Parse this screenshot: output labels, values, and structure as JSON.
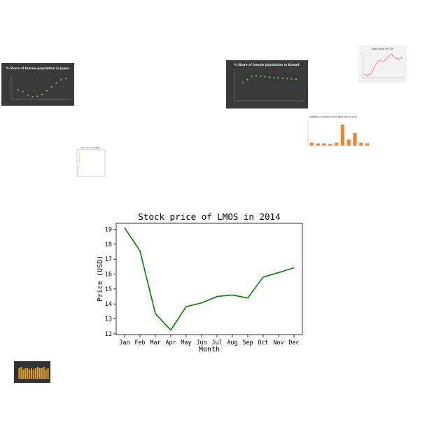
{
  "chart_data": [
    {
      "type": "line",
      "title": "Stock price of LMOS in 2014",
      "xlabel": "Month",
      "ylabel": "Price (USD)",
      "categories": [
        "Jan",
        "Feb",
        "Mar",
        "Apr",
        "May",
        "Jun",
        "Jul",
        "Aug",
        "Sep",
        "Oct",
        "Nov",
        "Dec"
      ],
      "values": [
        19.1,
        17.55,
        13.35,
        12.25,
        13.82,
        14.07,
        14.5,
        14.6,
        14.4,
        15.8,
        16.1,
        16.42
      ],
      "ylim": [
        11.95,
        19.4
      ],
      "yticks": [
        "12",
        "13",
        "14",
        "15",
        "16",
        "17",
        "18",
        "19"
      ],
      "line_color": "#008000",
      "grid": false
    },
    {
      "type": "scatter",
      "title": "% Share of female population in Japan",
      "theme": "dark",
      "marker_color": "#7cc47a",
      "values": [
        52.0,
        51.6,
        50.9,
        50.5,
        50.6,
        51.0,
        51.8,
        52.7,
        53.6,
        54.3,
        54.6
      ],
      "legend": "none"
    },
    {
      "type": "scatter",
      "title": "% Share of female population in Kuwait",
      "theme": "dark",
      "marker_color": "#7cc47a",
      "values": [
        40.2,
        41.4,
        42.6,
        42.9,
        42.7,
        42.5,
        42.3,
        42.1,
        42.0,
        41.9,
        41.8,
        41.7,
        41.5
      ],
      "legend": "none"
    },
    {
      "type": "line",
      "title": "Stock price of FOX",
      "line_color": "#e06b8b",
      "values": [
        10.0,
        9.6,
        10.4,
        12.5,
        13.6,
        13.2,
        14.3,
        15.2,
        14.1,
        13.9,
        14.4
      ]
    },
    {
      "type": "bar",
      "title": "NUMBER OF MILKING GOATS PER YEARS IN 2014",
      "bar_color": "#e8873a",
      "values": [
        4,
        3,
        3,
        2,
        4,
        28,
        8,
        17,
        4,
        3
      ]
    },
    {
      "type": "line",
      "title": "Stock price of PNRG",
      "line_color": "#f0c070",
      "values": [
        1,
        10
      ]
    },
    {
      "type": "bar",
      "theme": "dark",
      "bar_color": "#e8a42a",
      "values": [
        8,
        9,
        7,
        8,
        8,
        7,
        8,
        7,
        8,
        9,
        8,
        8,
        9,
        7,
        8
      ]
    }
  ]
}
